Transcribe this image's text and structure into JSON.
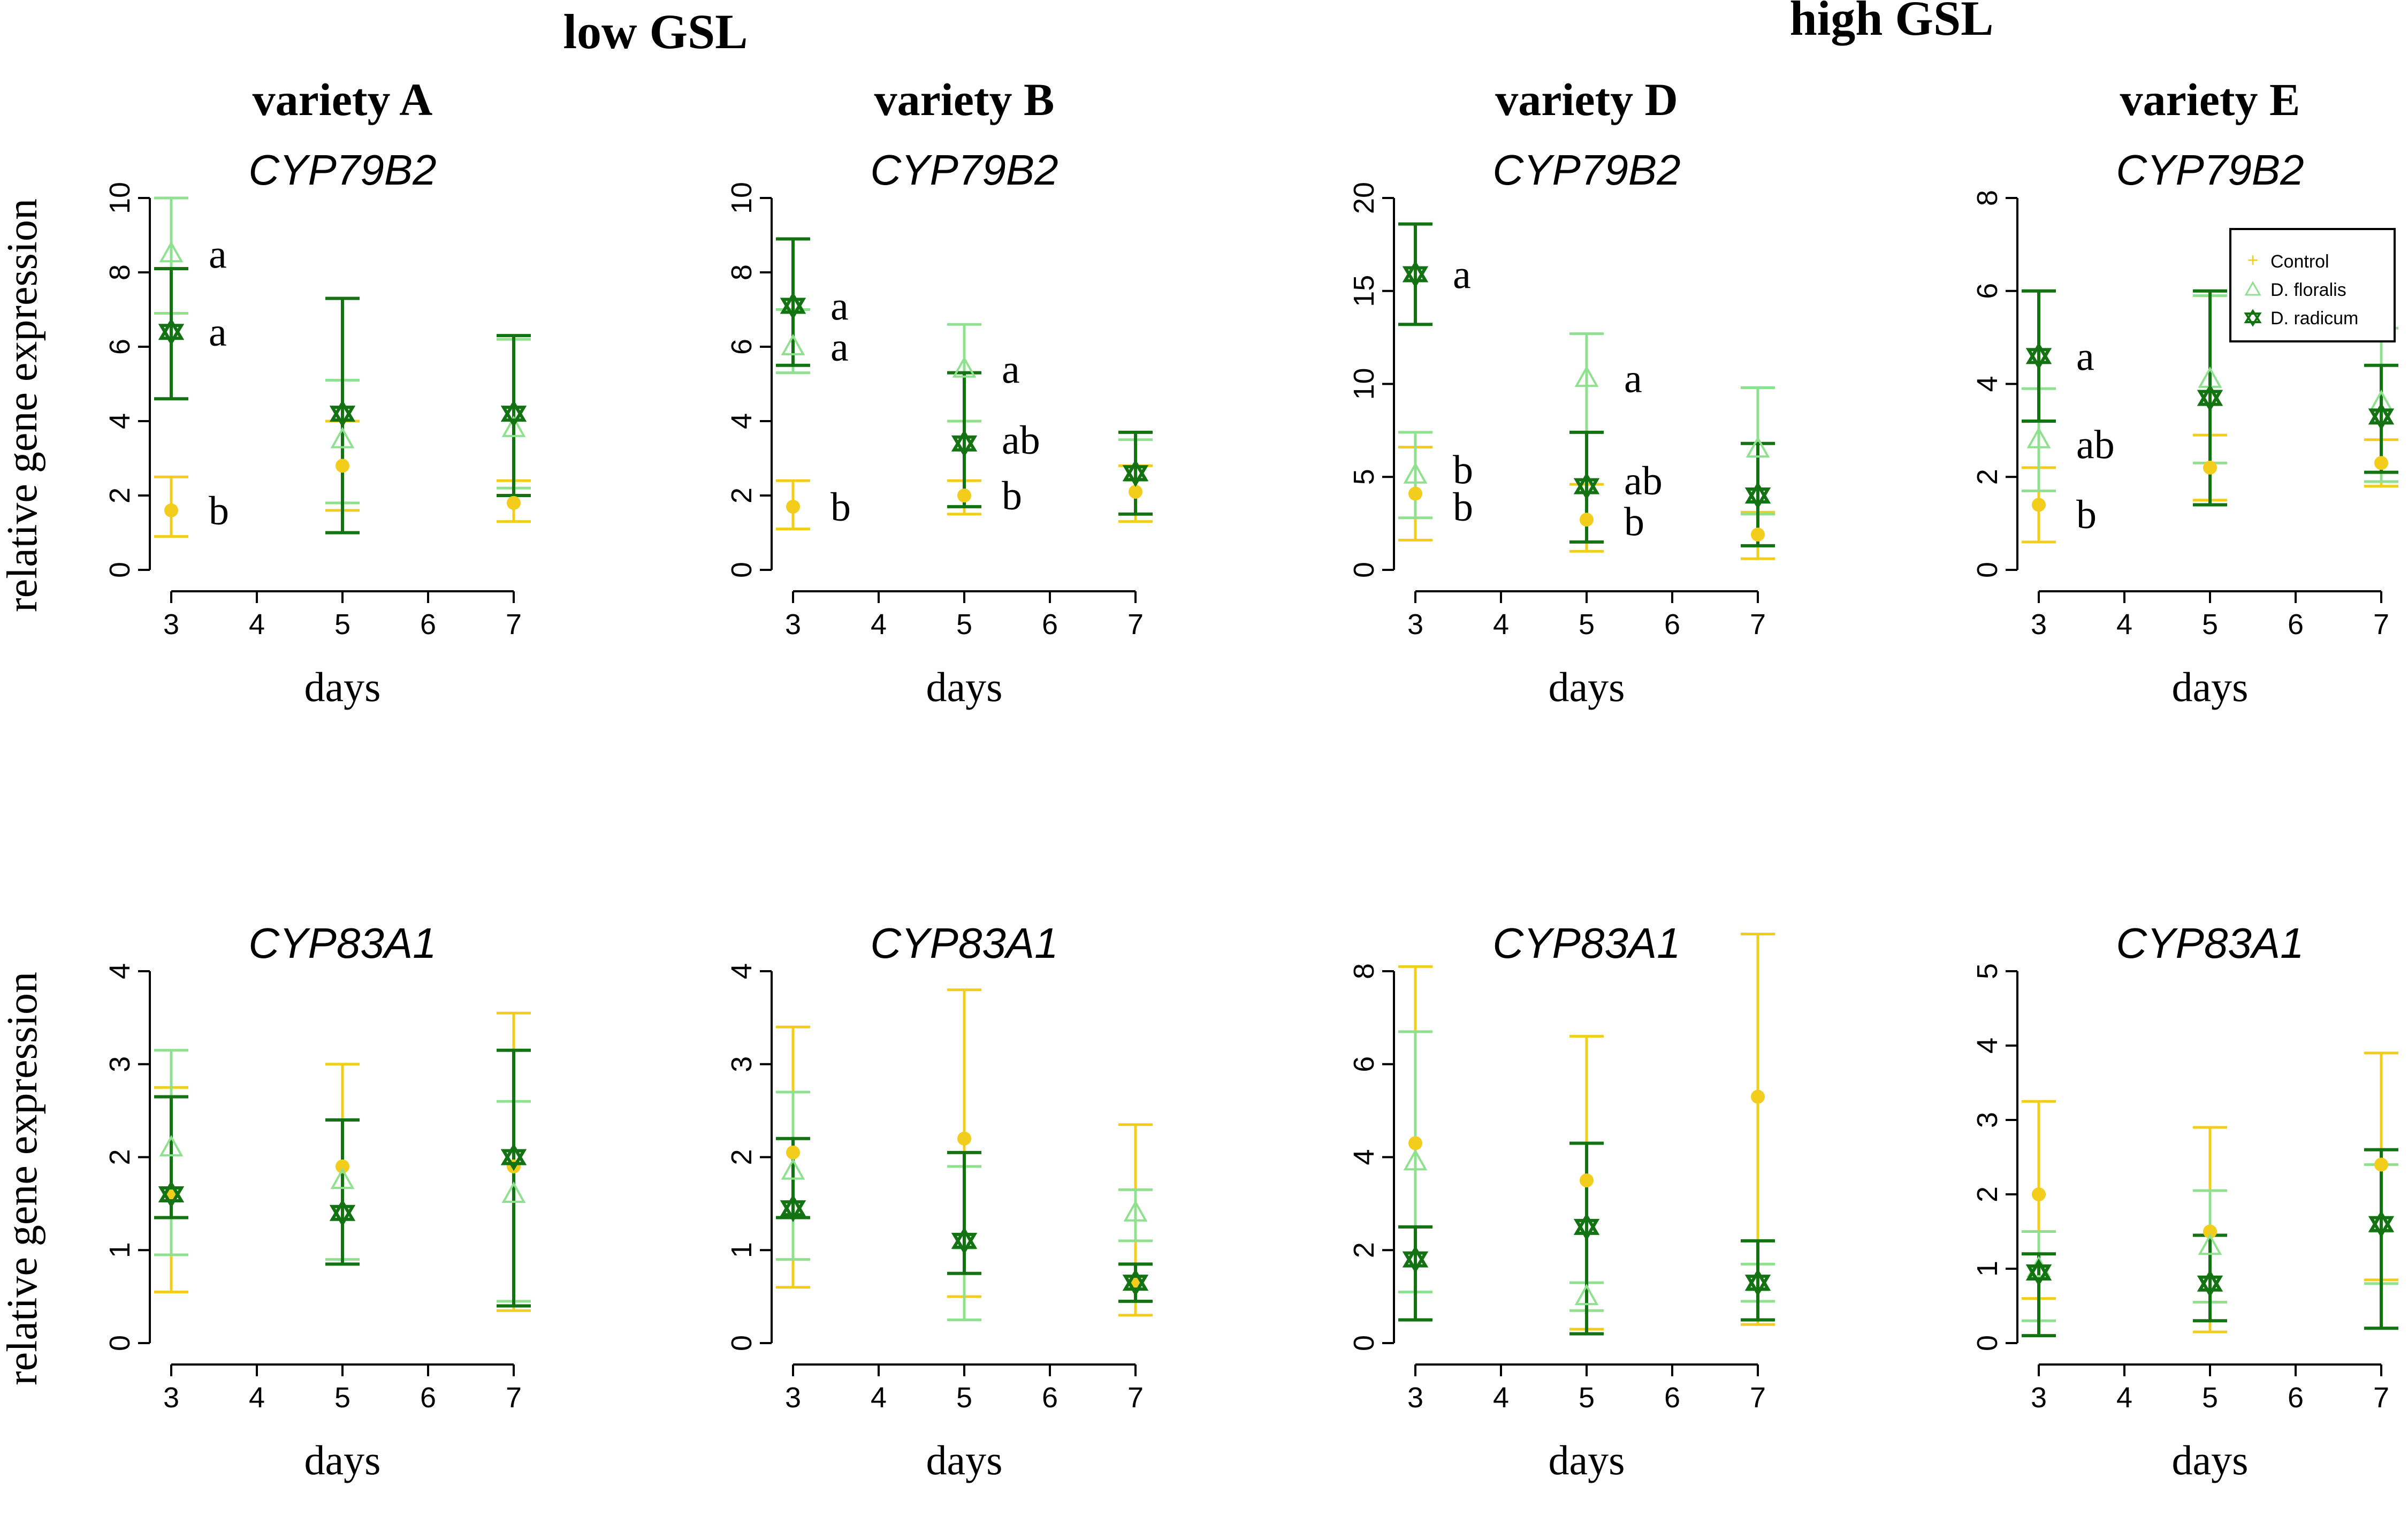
{
  "headers": {
    "group_low": "low GSL",
    "group_high": "high GSL",
    "varieties": [
      "variety A",
      "variety B",
      "variety D",
      "variety E"
    ]
  },
  "legend": {
    "items": [
      "Control",
      "D. floralis",
      "D. radicum"
    ]
  },
  "colors": {
    "Control": "#f2cd1c",
    "D. floralis": "#8fe08f",
    "D. radicum": "#137313",
    "axis": "#000000"
  },
  "chart_data": [
    {
      "type": "scatter",
      "title": "variety A",
      "gene": "CYP79B2",
      "xlabel": "days",
      "ylabel": "relative gene expression",
      "x_ticks": [
        3,
        4,
        5,
        6,
        7
      ],
      "ylim": [
        0,
        10
      ],
      "y_ticks": [
        0,
        2,
        4,
        6,
        8,
        10
      ],
      "series": [
        {
          "name": "Control",
          "x": [
            3,
            5,
            7
          ],
          "values": [
            1.6,
            2.8,
            1.8
          ],
          "lower": [
            0.9,
            1.6,
            1.3
          ],
          "upper": [
            2.5,
            4.0,
            2.4
          ]
        },
        {
          "name": "D. floralis",
          "x": [
            3,
            5,
            7
          ],
          "values": [
            8.5,
            3.5,
            3.8
          ],
          "lower": [
            6.9,
            1.8,
            2.2
          ],
          "upper": [
            10.0,
            5.1,
            6.2
          ]
        },
        {
          "name": "D. radicum",
          "x": [
            3,
            5,
            7
          ],
          "values": [
            6.4,
            4.2,
            4.2
          ],
          "lower": [
            4.6,
            1.0,
            2.0
          ],
          "upper": [
            8.1,
            7.3,
            6.3
          ]
        }
      ],
      "annotations": [
        {
          "x": 3,
          "y": 8.5,
          "text": "a"
        },
        {
          "x": 3,
          "y": 6.4,
          "text": "a"
        },
        {
          "x": 3,
          "y": 1.6,
          "text": "b"
        }
      ]
    },
    {
      "type": "scatter",
      "title": "variety B",
      "gene": "CYP79B2",
      "xlabel": "days",
      "ylabel": "",
      "x_ticks": [
        3,
        4,
        5,
        6,
        7
      ],
      "ylim": [
        0,
        10
      ],
      "y_ticks": [
        0,
        2,
        4,
        6,
        8,
        10
      ],
      "series": [
        {
          "name": "Control",
          "x": [
            3,
            5,
            7
          ],
          "values": [
            1.7,
            2.0,
            2.1
          ],
          "lower": [
            1.1,
            1.5,
            1.3
          ],
          "upper": [
            2.4,
            2.4,
            2.8
          ]
        },
        {
          "name": "D. floralis",
          "x": [
            3,
            5,
            7
          ],
          "values": [
            6.0,
            5.4,
            2.6
          ],
          "lower": [
            5.3,
            4.0,
            1.5
          ],
          "upper": [
            7.0,
            6.6,
            3.5
          ]
        },
        {
          "name": "D. radicum",
          "x": [
            3,
            5,
            7
          ],
          "values": [
            7.1,
            3.4,
            2.6
          ],
          "lower": [
            5.5,
            1.7,
            1.5
          ],
          "upper": [
            8.9,
            5.3,
            3.7
          ]
        }
      ],
      "annotations": [
        {
          "x": 3,
          "y": 7.1,
          "text": "a"
        },
        {
          "x": 3,
          "y": 6.0,
          "text": "a"
        },
        {
          "x": 3,
          "y": 1.7,
          "text": "b"
        },
        {
          "x": 5,
          "y": 5.4,
          "text": "a"
        },
        {
          "x": 5,
          "y": 3.5,
          "text": "ab"
        },
        {
          "x": 5,
          "y": 2.0,
          "text": "b"
        }
      ]
    },
    {
      "type": "scatter",
      "title": "variety D",
      "gene": "CYP79B2",
      "xlabel": "days",
      "ylabel": "",
      "x_ticks": [
        3,
        4,
        5,
        6,
        7
      ],
      "ylim": [
        0,
        20
      ],
      "y_ticks": [
        0,
        5,
        10,
        15,
        20
      ],
      "series": [
        {
          "name": "Control",
          "x": [
            3,
            5,
            7
          ],
          "values": [
            4.1,
            2.7,
            1.9
          ],
          "lower": [
            1.6,
            1.0,
            0.6
          ],
          "upper": [
            6.6,
            4.6,
            3.1
          ]
        },
        {
          "name": "D. floralis",
          "x": [
            3,
            5,
            7
          ],
          "values": [
            5.1,
            10.3,
            6.5
          ],
          "lower": [
            2.8,
            7.4,
            3.0
          ],
          "upper": [
            7.4,
            12.7,
            9.8
          ]
        },
        {
          "name": "D. radicum",
          "x": [
            3,
            5,
            7
          ],
          "values": [
            15.9,
            4.5,
            4.0
          ],
          "lower": [
            13.2,
            1.5,
            1.3
          ],
          "upper": [
            18.6,
            7.4,
            6.8
          ]
        }
      ],
      "annotations": [
        {
          "x": 3,
          "y": 15.9,
          "text": "a"
        },
        {
          "x": 3,
          "y": 5.4,
          "text": "b"
        },
        {
          "x": 3,
          "y": 3.4,
          "text": "b"
        },
        {
          "x": 5,
          "y": 10.3,
          "text": "a"
        },
        {
          "x": 5,
          "y": 4.8,
          "text": "ab"
        },
        {
          "x": 5,
          "y": 2.6,
          "text": "b"
        }
      ]
    },
    {
      "type": "scatter",
      "title": "variety E",
      "gene": "CYP79B2",
      "xlabel": "days",
      "ylabel": "",
      "x_ticks": [
        3,
        4,
        5,
        6,
        7
      ],
      "ylim": [
        0,
        8
      ],
      "y_ticks": [
        0,
        2,
        4,
        6,
        8
      ],
      "legend": "top-right",
      "series": [
        {
          "name": "Control",
          "x": [
            3,
            5,
            7
          ],
          "values": [
            1.4,
            2.2,
            2.3
          ],
          "lower": [
            0.6,
            1.5,
            1.8
          ],
          "upper": [
            2.2,
            2.9,
            2.8
          ]
        },
        {
          "name": "D. floralis",
          "x": [
            3,
            5,
            7
          ],
          "values": [
            2.8,
            4.1,
            3.6
          ],
          "lower": [
            1.7,
            2.3,
            1.9
          ],
          "upper": [
            3.9,
            5.9,
            5.2
          ]
        },
        {
          "name": "D. radicum",
          "x": [
            3,
            5,
            7
          ],
          "values": [
            4.6,
            3.7,
            3.3
          ],
          "lower": [
            3.2,
            1.4,
            2.1
          ],
          "upper": [
            6.0,
            6.0,
            4.4
          ]
        }
      ],
      "annotations": [
        {
          "x": 3,
          "y": 4.6,
          "text": "a"
        },
        {
          "x": 3,
          "y": 2.7,
          "text": "ab"
        },
        {
          "x": 3,
          "y": 1.2,
          "text": "b"
        }
      ]
    },
    {
      "type": "scatter",
      "title": "variety A",
      "gene": "CYP83A1",
      "xlabel": "days",
      "ylabel": "relative gene expression",
      "x_ticks": [
        3,
        4,
        5,
        6,
        7
      ],
      "ylim": [
        0,
        4
      ],
      "y_ticks": [
        0,
        1,
        2,
        3,
        4
      ],
      "series": [
        {
          "name": "Control",
          "x": [
            3,
            5,
            7
          ],
          "values": [
            1.6,
            1.9,
            1.9
          ],
          "lower": [
            0.55,
            0.85,
            0.35
          ],
          "upper": [
            2.75,
            3.0,
            3.55
          ]
        },
        {
          "name": "D. floralis",
          "x": [
            3,
            5,
            7
          ],
          "values": [
            2.1,
            1.75,
            1.6
          ],
          "lower": [
            0.95,
            0.9,
            0.45
          ],
          "upper": [
            3.15,
            2.4,
            2.6
          ]
        },
        {
          "name": "D. radicum",
          "x": [
            3,
            5,
            7
          ],
          "values": [
            1.6,
            1.4,
            2.0
          ],
          "lower": [
            1.35,
            0.85,
            0.4
          ],
          "upper": [
            2.65,
            2.4,
            3.15
          ]
        }
      ],
      "annotations": []
    },
    {
      "type": "scatter",
      "title": "variety B",
      "gene": "CYP83A1",
      "xlabel": "days",
      "ylabel": "",
      "x_ticks": [
        3,
        4,
        5,
        6,
        7
      ],
      "ylim": [
        0,
        4
      ],
      "y_ticks": [
        0,
        1,
        2,
        3,
        4
      ],
      "series": [
        {
          "name": "Control",
          "x": [
            3,
            5,
            7
          ],
          "values": [
            2.05,
            2.2,
            0.65
          ],
          "lower": [
            0.6,
            0.5,
            0.3
          ],
          "upper": [
            3.4,
            3.8,
            2.35
          ]
        },
        {
          "name": "D. floralis",
          "x": [
            3,
            5,
            7
          ],
          "values": [
            1.85,
            1.1,
            1.4
          ],
          "lower": [
            0.9,
            0.25,
            1.1
          ],
          "upper": [
            2.7,
            1.9,
            1.65
          ]
        },
        {
          "name": "D. radicum",
          "x": [
            3,
            5,
            7
          ],
          "values": [
            1.45,
            1.1,
            0.65
          ],
          "lower": [
            1.35,
            0.75,
            0.45
          ],
          "upper": [
            2.2,
            2.05,
            0.85
          ]
        }
      ],
      "annotations": []
    },
    {
      "type": "scatter",
      "title": "variety D",
      "gene": "CYP83A1",
      "xlabel": "days",
      "ylabel": "",
      "x_ticks": [
        3,
        4,
        5,
        6,
        7
      ],
      "ylim": [
        0,
        8
      ],
      "y_ticks": [
        0,
        2,
        4,
        6,
        8
      ],
      "series": [
        {
          "name": "Control",
          "x": [
            3,
            5,
            7
          ],
          "values": [
            4.3,
            3.5,
            5.3
          ],
          "lower": [
            0.5,
            0.3,
            0.4
          ],
          "upper": [
            8.1,
            6.6,
            8.8
          ]
        },
        {
          "name": "D. floralis",
          "x": [
            3,
            5,
            7
          ],
          "values": [
            3.9,
            1.0,
            1.3
          ],
          "lower": [
            1.1,
            0.7,
            0.9
          ],
          "upper": [
            6.7,
            1.3,
            1.7
          ]
        },
        {
          "name": "D. radicum",
          "x": [
            3,
            5,
            7
          ],
          "values": [
            1.8,
            2.5,
            1.3
          ],
          "lower": [
            0.5,
            0.2,
            0.5
          ],
          "upper": [
            2.5,
            4.3,
            2.2
          ]
        }
      ],
      "annotations": []
    },
    {
      "type": "scatter",
      "title": "variety E",
      "gene": "CYP83A1",
      "xlabel": "days",
      "ylabel": "",
      "x_ticks": [
        3,
        4,
        5,
        6,
        7
      ],
      "ylim": [
        0,
        5
      ],
      "y_ticks": [
        0,
        1,
        2,
        3,
        4,
        5
      ],
      "series": [
        {
          "name": "Control",
          "x": [
            3,
            5,
            7
          ],
          "values": [
            2.0,
            1.5,
            2.4
          ],
          "lower": [
            0.6,
            0.15,
            0.85
          ],
          "upper": [
            3.25,
            2.9,
            3.9
          ]
        },
        {
          "name": "D. floralis",
          "x": [
            3,
            5,
            7
          ],
          "values": [
            1.0,
            1.3,
            1.6
          ],
          "lower": [
            0.3,
            0.55,
            0.8
          ],
          "upper": [
            1.5,
            2.05,
            2.4
          ]
        },
        {
          "name": "D. radicum",
          "x": [
            3,
            5,
            7
          ],
          "values": [
            0.95,
            0.8,
            1.6
          ],
          "lower": [
            0.1,
            0.3,
            0.2
          ],
          "upper": [
            1.2,
            1.45,
            2.6
          ]
        }
      ],
      "annotations": []
    }
  ]
}
